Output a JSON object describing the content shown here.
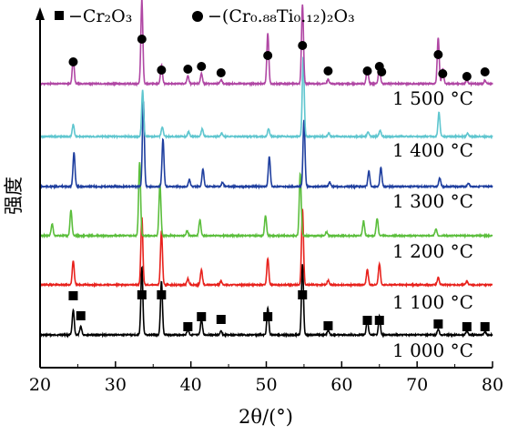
{
  "chart_data": {
    "type": "line",
    "title": "",
    "xlabel": "2θ/(°)",
    "ylabel": "强度",
    "xlim": [
      20,
      80
    ],
    "x_ticks": [
      "20",
      "30",
      "40",
      "50",
      "60",
      "70",
      "80"
    ],
    "grid": false,
    "legend": {
      "placement": "top",
      "entries": [
        {
          "marker": "square",
          "label": "−Cr₂O₃"
        },
        {
          "marker": "circle",
          "label": "−(Cr₀.₈₈Ti₀.₁₂)₂O₃"
        }
      ]
    },
    "series": [
      {
        "name": "1 000 °C",
        "color": "#000000",
        "peaks": [
          [
            24.4,
            0.35
          ],
          [
            25.4,
            0.12
          ],
          [
            33.5,
            0.95
          ],
          [
            36.1,
            0.75
          ],
          [
            39.6,
            0.08
          ],
          [
            41.4,
            0.22
          ],
          [
            44.0,
            0.05
          ],
          [
            50.2,
            0.38
          ],
          [
            54.8,
            1.0
          ],
          [
            58.2,
            0.06
          ],
          [
            63.4,
            0.22
          ],
          [
            65.0,
            0.26
          ],
          [
            72.8,
            0.08
          ],
          [
            76.6,
            0.06
          ],
          [
            79.0,
            0.05
          ]
        ]
      },
      {
        "name": "1 100 °C",
        "color": "#e8221d",
        "peaks": [
          [
            24.4,
            0.32
          ],
          [
            33.5,
            0.9
          ],
          [
            36.1,
            0.72
          ],
          [
            39.6,
            0.08
          ],
          [
            41.4,
            0.2
          ],
          [
            44.0,
            0.05
          ],
          [
            50.2,
            0.35
          ],
          [
            54.8,
            1.0
          ],
          [
            58.2,
            0.06
          ],
          [
            63.4,
            0.2
          ],
          [
            65.0,
            0.28
          ],
          [
            72.8,
            0.1
          ],
          [
            76.6,
            0.05
          ]
        ]
      },
      {
        "name": "1 200 °C",
        "color": "#5bbe3c",
        "peaks": [
          [
            21.6,
            0.15
          ],
          [
            24.1,
            0.32
          ],
          [
            33.2,
            0.92
          ],
          [
            35.9,
            0.65
          ],
          [
            39.5,
            0.06
          ],
          [
            41.2,
            0.2
          ],
          [
            49.9,
            0.25
          ],
          [
            54.5,
            0.78
          ],
          [
            58.0,
            0.05
          ],
          [
            62.9,
            0.18
          ],
          [
            64.7,
            0.22
          ],
          [
            72.5,
            0.08
          ]
        ]
      },
      {
        "name": "1 300 °C",
        "color": "#1f3f9f",
        "peaks": [
          [
            24.5,
            0.4
          ],
          [
            33.7,
            1.0
          ],
          [
            36.3,
            0.55
          ],
          [
            39.8,
            0.08
          ],
          [
            41.6,
            0.2
          ],
          [
            44.2,
            0.05
          ],
          [
            50.4,
            0.35
          ],
          [
            55.0,
            0.78
          ],
          [
            58.4,
            0.05
          ],
          [
            63.6,
            0.18
          ],
          [
            65.2,
            0.22
          ],
          [
            73.0,
            0.1
          ],
          [
            76.8,
            0.04
          ]
        ]
      },
      {
        "name": "1 400 °C",
        "color": "#5fc6cf",
        "peaks": [
          [
            24.4,
            0.15
          ],
          [
            33.6,
            0.58
          ],
          [
            36.2,
            0.12
          ],
          [
            39.7,
            0.06
          ],
          [
            41.5,
            0.1
          ],
          [
            44.1,
            0.04
          ],
          [
            50.3,
            0.1
          ],
          [
            54.9,
            1.0
          ],
          [
            58.3,
            0.04
          ],
          [
            63.5,
            0.06
          ],
          [
            65.1,
            0.08
          ],
          [
            72.9,
            0.3
          ],
          [
            76.7,
            0.04
          ]
        ]
      },
      {
        "name": "1 500 °C",
        "color": "#b047a4",
        "peaks": [
          [
            24.4,
            0.3
          ],
          [
            33.5,
            1.0
          ],
          [
            36.1,
            0.22
          ],
          [
            39.6,
            0.1
          ],
          [
            41.4,
            0.12
          ],
          [
            44.0,
            0.05
          ],
          [
            50.2,
            0.6
          ],
          [
            54.8,
            0.95
          ],
          [
            58.2,
            0.05
          ],
          [
            63.4,
            0.2
          ],
          [
            65.0,
            0.22
          ],
          [
            72.8,
            0.55
          ],
          [
            73.4,
            0.18
          ],
          [
            76.6,
            0.05
          ],
          [
            79.0,
            0.04
          ]
        ]
      }
    ],
    "markers": {
      "square": {
        "on": "1 000 °C",
        "x": [
          24.4,
          25.4,
          33.5,
          36.1,
          39.6,
          41.4,
          44.0,
          50.2,
          54.8,
          58.2,
          63.4,
          65.0,
          72.8,
          76.6,
          79.0
        ]
      },
      "circle": {
        "on": "1 500 °C",
        "x": [
          24.4,
          33.5,
          36.1,
          39.6,
          41.4,
          44.0,
          50.2,
          54.8,
          58.2,
          63.4,
          65.0,
          65.3,
          72.8,
          73.4,
          76.6,
          79.0
        ]
      }
    }
  }
}
